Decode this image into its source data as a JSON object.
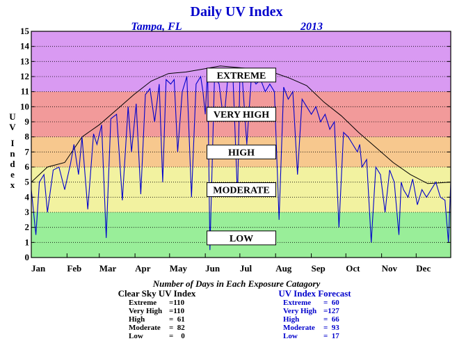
{
  "chart_data": {
    "type": "line",
    "title": "Daily UV Index",
    "location": "Tampa, FL",
    "year": "2013",
    "ylabel": "UV Index",
    "ylim": [
      0,
      15
    ],
    "y_ticks": [
      "0",
      "1",
      "2",
      "3",
      "4",
      "5",
      "6",
      "7",
      "8",
      "9",
      "10",
      "11",
      "12",
      "13",
      "14",
      "15"
    ],
    "x_ticks": [
      "Jan",
      "Feb",
      "Mar",
      "Apr",
      "May",
      "Jun",
      "Jul",
      "Aug",
      "Sep",
      "Oct",
      "Nov",
      "Dec"
    ],
    "grid": true,
    "bands": [
      {
        "label": "LOW",
        "from": 0,
        "to": 3,
        "color": "#99ee99"
      },
      {
        "label": "MODERATE",
        "from": 3,
        "to": 6,
        "color": "#f2f2a0"
      },
      {
        "label": "HIGH",
        "from": 6,
        "to": 8,
        "color": "#f7c88e"
      },
      {
        "label": "VERY HIGH",
        "from": 8,
        "to": 11,
        "color": "#f29a9a"
      },
      {
        "label": "EXTREME",
        "from": 11,
        "to": 15,
        "color": "#d99af2"
      }
    ],
    "series": [
      {
        "name": "Clear Sky UV Index",
        "color": "#000000",
        "x": [
          1,
          15,
          30,
          45,
          60,
          75,
          90,
          105,
          120,
          135,
          150,
          165,
          180,
          195,
          210,
          225,
          240,
          255,
          270,
          285,
          300,
          315,
          330,
          345,
          365
        ],
        "values": [
          5.0,
          6.0,
          6.3,
          8.0,
          8.8,
          9.8,
          10.8,
          11.7,
          12.2,
          12.3,
          12.5,
          12.7,
          12.6,
          12.5,
          12.3,
          11.9,
          11.4,
          10.3,
          9.4,
          8.3,
          7.3,
          6.3,
          5.5,
          4.9,
          5.0
        ]
      },
      {
        "name": "UV Index Forecast",
        "color": "#0000cc",
        "x": [
          1,
          5,
          8,
          12,
          15,
          20,
          25,
          30,
          35,
          38,
          42,
          45,
          50,
          55,
          58,
          62,
          66,
          70,
          75,
          80,
          85,
          88,
          92,
          96,
          100,
          104,
          108,
          112,
          115,
          118,
          122,
          125,
          128,
          132,
          136,
          140,
          144,
          148,
          150,
          152,
          154,
          156,
          160,
          164,
          168,
          172,
          176,
          180,
          182,
          184,
          188,
          192,
          196,
          200,
          204,
          208,
          212,
          216,
          220,
          224,
          228,
          232,
          236,
          240,
          244,
          248,
          252,
          256,
          260,
          264,
          268,
          272,
          276,
          280,
          284,
          286,
          288,
          292,
          296,
          300,
          304,
          308,
          312,
          316,
          320,
          322,
          324,
          328,
          332,
          336,
          340,
          344,
          348,
          352,
          356,
          360,
          363,
          365
        ],
        "values": [
          4.5,
          1.5,
          5.0,
          5.5,
          3.0,
          5.8,
          6.0,
          4.5,
          6.2,
          7.5,
          5.5,
          8.0,
          3.2,
          8.2,
          7.5,
          8.8,
          1.3,
          9.2,
          9.5,
          3.8,
          10.0,
          7.0,
          10.2,
          4.2,
          10.8,
          11.2,
          9.0,
          11.5,
          5.0,
          11.8,
          11.5,
          11.8,
          7.0,
          11.0,
          12.0,
          4.0,
          11.5,
          12.0,
          11.0,
          9.5,
          12.5,
          0.5,
          12.0,
          11.5,
          9.0,
          12.3,
          12.0,
          4.0,
          11.8,
          12.0,
          7.5,
          12.0,
          11.5,
          11.8,
          11.0,
          11.5,
          11.0,
          2.5,
          11.3,
          10.5,
          11.0,
          5.5,
          10.5,
          10.0,
          9.5,
          10.0,
          9.0,
          9.5,
          8.5,
          9.0,
          2.0,
          8.3,
          8.0,
          7.5,
          7.0,
          7.5,
          6.0,
          6.5,
          1.0,
          6.0,
          5.5,
          3.0,
          5.8,
          5.0,
          1.5,
          5.0,
          4.5,
          4.0,
          5.2,
          3.5,
          4.5,
          4.0,
          4.5,
          5.0,
          4.0,
          3.8,
          1.0,
          5.0
        ]
      }
    ]
  },
  "stats_title": "Number of Days in Each Exposure Catagory",
  "left_stats": {
    "header": "Clear Sky UV Index",
    "rows": [
      {
        "name": "Extreme",
        "value": "=110"
      },
      {
        "name": "Very High",
        "value": "=110"
      },
      {
        "name": "High",
        "value": "=  61"
      },
      {
        "name": "Moderate",
        "value": "=  82"
      },
      {
        "name": "Low",
        "value": "=    0"
      }
    ]
  },
  "right_stats": {
    "header": "UV Index Forecast",
    "rows": [
      {
        "name": "Extreme",
        "value": "=  60"
      },
      {
        "name": "Very High",
        "value": "=127"
      },
      {
        "name": "High",
        "value": "=  66"
      },
      {
        "name": "Moderate",
        "value": "=  93"
      },
      {
        "name": "Low",
        "value": "=  17"
      }
    ]
  }
}
